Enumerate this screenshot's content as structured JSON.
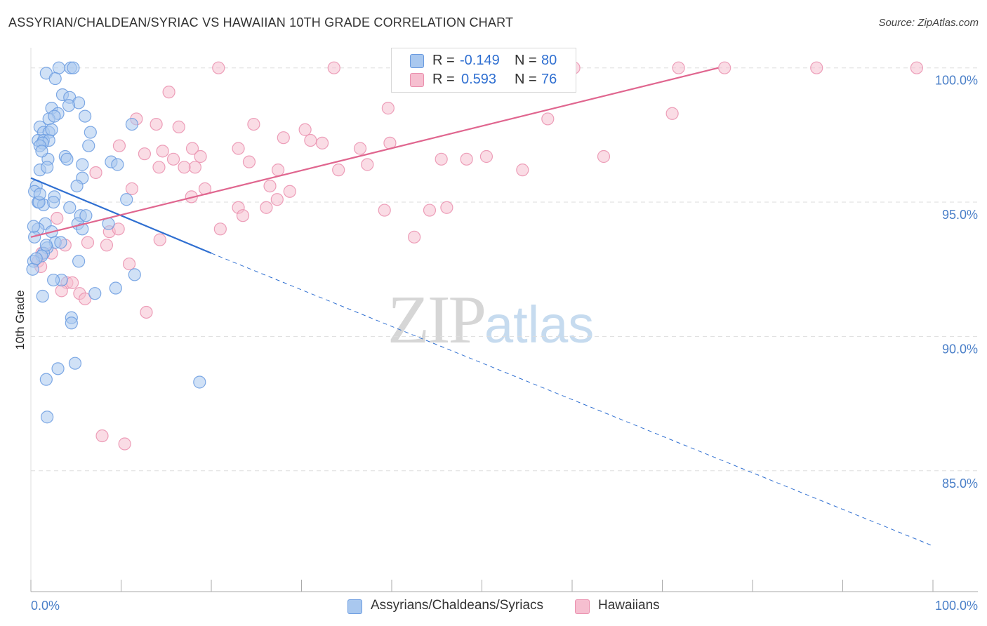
{
  "header": {
    "title": "ASSYRIAN/CHALDEAN/SYRIAC VS HAWAIIAN 10TH GRADE CORRELATION CHART",
    "source": "Source: ZipAtlas.com"
  },
  "watermark": {
    "zip": "ZIP",
    "atlas": "atlas"
  },
  "legend": {
    "rows": [
      {
        "r_label": "R = ",
        "r_value": "-0.149",
        "n_label": "N = ",
        "n_value": "80"
      },
      {
        "r_label": "R = ",
        "r_value": "0.593",
        "n_label": "N = ",
        "n_value": "76"
      }
    ]
  },
  "colors": {
    "series_a_fill": "#a9c8ef",
    "series_a_stroke": "#6a9be0",
    "series_a_line": "#2f6fd1",
    "series_b_fill": "#f6bfd0",
    "series_b_stroke": "#ea8fae",
    "series_b_line": "#e0668f",
    "tick": "#4a7fc8",
    "grid": "#dddddd"
  },
  "chart_data": {
    "type": "scatter",
    "title": "ASSYRIAN/CHALDEAN/SYRIAC VS HAWAIIAN 10TH GRADE CORRELATION CHART",
    "xlabel": "",
    "ylabel": "10th Grade",
    "xlim": [
      0,
      100
    ],
    "ylim": [
      80.5,
      100.75
    ],
    "x_tick_labels": [
      "0.0%",
      "100.0%"
    ],
    "y_ticks": [
      85,
      90,
      95,
      100
    ],
    "y_tick_labels": [
      "85.0%",
      "90.0%",
      "95.0%",
      "100.0%"
    ],
    "grid": true,
    "series": [
      {
        "name": "Assyrians/Chaldeans/Syriacs",
        "r": -0.149,
        "n": 80,
        "trend": {
          "x0": 0,
          "y0": 95.9,
          "x1": 20,
          "y1": 93.1,
          "dashed_to_x": 100,
          "dashed_to_y": 82.2
        },
        "points": [
          [
            3.1,
            100
          ],
          [
            4.4,
            100
          ],
          [
            4.7,
            100
          ],
          [
            1.7,
            99.8
          ],
          [
            2.7,
            99.6
          ],
          [
            3.5,
            99
          ],
          [
            4.3,
            98.9
          ],
          [
            5.3,
            98.7
          ],
          [
            2.3,
            98.5
          ],
          [
            4.2,
            98.6
          ],
          [
            3.0,
            98.3
          ],
          [
            2.0,
            98.1
          ],
          [
            2.6,
            98.2
          ],
          [
            6.0,
            98.2
          ],
          [
            11.2,
            97.9
          ],
          [
            1.0,
            97.8
          ],
          [
            1.4,
            97.6
          ],
          [
            2.0,
            97.6
          ],
          [
            6.6,
            97.6
          ],
          [
            0.8,
            97.3
          ],
          [
            1.4,
            97.3
          ],
          [
            2.0,
            97.3
          ],
          [
            6.4,
            97.1
          ],
          [
            1.3,
            97.2
          ],
          [
            1.0,
            97.1
          ],
          [
            3.8,
            96.7
          ],
          [
            4.0,
            96.6
          ],
          [
            1.9,
            96.6
          ],
          [
            8.9,
            96.5
          ],
          [
            9.6,
            96.4
          ],
          [
            5.7,
            96.4
          ],
          [
            1.0,
            96.2
          ],
          [
            1.8,
            96.3
          ],
          [
            5.7,
            95.9
          ],
          [
            0.6,
            95.6
          ],
          [
            5.1,
            95.6
          ],
          [
            0.4,
            95.4
          ],
          [
            2.6,
            95.2
          ],
          [
            10.6,
            95.1
          ],
          [
            0.8,
            95.0
          ],
          [
            1.4,
            94.9
          ],
          [
            2.5,
            95.0
          ],
          [
            5.5,
            94.5
          ],
          [
            6.1,
            94.5
          ],
          [
            5.2,
            94.2
          ],
          [
            1.6,
            94.2
          ],
          [
            8.6,
            94.2
          ],
          [
            0.8,
            94.0
          ],
          [
            2.3,
            93.9
          ],
          [
            5.7,
            94.0
          ],
          [
            0.4,
            93.7
          ],
          [
            2.7,
            93.5
          ],
          [
            1.8,
            93.3
          ],
          [
            1.4,
            93.1
          ],
          [
            1.2,
            93.0
          ],
          [
            5.3,
            92.8
          ],
          [
            0.3,
            92.8
          ],
          [
            0.2,
            92.5
          ],
          [
            11.5,
            92.3
          ],
          [
            3.4,
            92.1
          ],
          [
            9.4,
            91.8
          ],
          [
            7.1,
            91.6
          ],
          [
            1.3,
            91.5
          ],
          [
            4.5,
            90.7
          ],
          [
            4.5,
            90.5
          ],
          [
            4.9,
            89.0
          ],
          [
            3.0,
            88.8
          ],
          [
            1.7,
            88.4
          ],
          [
            18.7,
            88.3
          ],
          [
            1.8,
            87.0
          ],
          [
            0.3,
            94.1
          ],
          [
            1.7,
            93.4
          ],
          [
            3.3,
            93.5
          ],
          [
            0.9,
            95.0
          ],
          [
            1.2,
            96.9
          ],
          [
            2.3,
            97.7
          ],
          [
            0.6,
            92.9
          ],
          [
            2.5,
            92.1
          ],
          [
            4.3,
            94.8
          ],
          [
            1.0,
            95.3
          ]
        ]
      },
      {
        "name": "Hawaiians",
        "r": 0.593,
        "n": 76,
        "trend": {
          "x0": 0,
          "y0": 93.7,
          "x1": 76.2,
          "y1": 100
        },
        "points": [
          [
            20.8,
            100
          ],
          [
            33.6,
            100
          ],
          [
            52.3,
            100
          ],
          [
            60.2,
            100
          ],
          [
            71.8,
            100
          ],
          [
            76.9,
            100
          ],
          [
            87.1,
            100
          ],
          [
            98.2,
            100
          ],
          [
            15.3,
            99.1
          ],
          [
            39.6,
            98.5
          ],
          [
            71.1,
            98.3
          ],
          [
            57.3,
            98.1
          ],
          [
            11.7,
            98.1
          ],
          [
            13.9,
            97.9
          ],
          [
            16.4,
            97.8
          ],
          [
            24.7,
            97.9
          ],
          [
            30.4,
            97.7
          ],
          [
            28.0,
            97.4
          ],
          [
            31.0,
            97.3
          ],
          [
            32.3,
            97.2
          ],
          [
            39.8,
            97.2
          ],
          [
            36.5,
            97.0
          ],
          [
            23.0,
            97.0
          ],
          [
            17.9,
            97.0
          ],
          [
            14.6,
            96.9
          ],
          [
            9.8,
            97.1
          ],
          [
            12.6,
            96.8
          ],
          [
            18.8,
            96.7
          ],
          [
            24.2,
            96.5
          ],
          [
            15.8,
            96.6
          ],
          [
            27.4,
            96.2
          ],
          [
            48.3,
            96.6
          ],
          [
            45.5,
            96.6
          ],
          [
            37.3,
            96.4
          ],
          [
            34.1,
            96.2
          ],
          [
            54.5,
            96.2
          ],
          [
            63.5,
            96.7
          ],
          [
            50.5,
            96.7
          ],
          [
            7.2,
            96.1
          ],
          [
            26.5,
            95.6
          ],
          [
            14.2,
            96.3
          ],
          [
            18.2,
            96.3
          ],
          [
            17.0,
            96.3
          ],
          [
            11.2,
            95.5
          ],
          [
            27.3,
            95.1
          ],
          [
            17.8,
            95.2
          ],
          [
            23.0,
            94.8
          ],
          [
            39.2,
            94.7
          ],
          [
            26.1,
            94.8
          ],
          [
            44.2,
            94.7
          ],
          [
            46.1,
            94.8
          ],
          [
            28.7,
            95.4
          ],
          [
            19.3,
            95.5
          ],
          [
            23.5,
            94.5
          ],
          [
            2.9,
            94.4
          ],
          [
            21.0,
            94.0
          ],
          [
            8.7,
            93.9
          ],
          [
            9.7,
            94.0
          ],
          [
            42.5,
            93.7
          ],
          [
            14.3,
            93.6
          ],
          [
            6.3,
            93.5
          ],
          [
            3.8,
            93.4
          ],
          [
            8.4,
            93.4
          ],
          [
            1.2,
            93.1
          ],
          [
            2.3,
            93.1
          ],
          [
            0.8,
            92.8
          ],
          [
            1.1,
            92.6
          ],
          [
            10.9,
            92.7
          ],
          [
            4.0,
            92.0
          ],
          [
            4.6,
            92.0
          ],
          [
            3.4,
            91.7
          ],
          [
            5.4,
            91.6
          ],
          [
            6.0,
            91.4
          ],
          [
            12.8,
            90.9
          ],
          [
            7.9,
            86.3
          ],
          [
            10.4,
            86.0
          ]
        ]
      }
    ]
  },
  "bottom_legend": {
    "items": [
      {
        "label": "Assyrians/Chaldeans/Syriacs"
      },
      {
        "label": "Hawaiians"
      }
    ]
  }
}
